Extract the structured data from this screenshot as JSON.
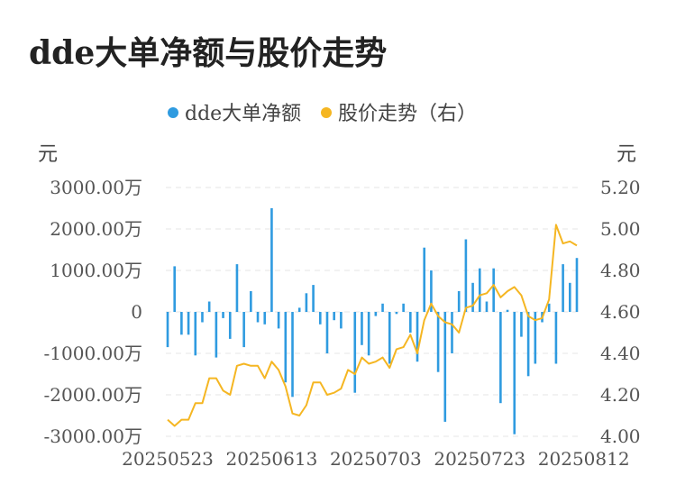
{
  "title": "dde大单净额与股价走势",
  "chart_data": {
    "type": "bar+line",
    "legend": [
      {
        "name": "dde大单净额",
        "color": "#2f9be0"
      },
      {
        "name": "股价走势（右）",
        "color": "#f5b622"
      }
    ],
    "left_unit": "元",
    "right_unit": "元",
    "left_ticks": [
      "3000.00万",
      "2000.00万",
      "1000.00万",
      "0",
      "-1000.00万",
      "-2000.00万",
      "-3000.00万"
    ],
    "right_ticks": [
      "5.20",
      "5.00",
      "4.80",
      "4.60",
      "4.40",
      "4.20",
      "4.00"
    ],
    "ylim_left": [
      -3000,
      3000
    ],
    "ylim_right": [
      4.0,
      5.2
    ],
    "x_tick_labels": [
      "20250523",
      "20250613",
      "20250703",
      "20250723",
      "20250812"
    ],
    "x_tick_index": [
      0,
      15,
      30,
      45,
      60
    ],
    "bar_color": "#2f9be0",
    "line_color": "#f5b622",
    "series": [
      {
        "name": "dde大单净额",
        "values": [
          -850,
          1100,
          -550,
          -550,
          -1050,
          -250,
          250,
          -1100,
          -150,
          -650,
          1150,
          -850,
          500,
          -250,
          -300,
          2500,
          -400,
          -1700,
          -2050,
          100,
          450,
          650,
          -300,
          -1000,
          -200,
          -400,
          0,
          -1950,
          -800,
          -1050,
          -100,
          200,
          -1250,
          -50,
          200,
          -500,
          -1200,
          1550,
          1000,
          -1450,
          -2650,
          -1000,
          500,
          1750,
          700,
          1050,
          250,
          1050,
          -2200,
          50,
          -2950,
          -600,
          -1550,
          -1250,
          -250,
          200,
          -1250,
          1150,
          700,
          1300
        ]
      },
      {
        "name": "股价走势（右）",
        "values": [
          4.08,
          4.05,
          4.08,
          4.08,
          4.16,
          4.16,
          4.28,
          4.28,
          4.22,
          4.2,
          4.34,
          4.35,
          4.34,
          4.34,
          4.28,
          4.36,
          4.32,
          4.24,
          4.11,
          4.1,
          4.15,
          4.26,
          4.26,
          4.2,
          4.21,
          4.23,
          4.32,
          4.3,
          4.38,
          4.35,
          4.36,
          4.38,
          4.33,
          4.42,
          4.43,
          4.49,
          4.4,
          4.56,
          4.64,
          4.58,
          4.55,
          4.54,
          4.5,
          4.62,
          4.63,
          4.68,
          4.69,
          4.73,
          4.67,
          4.7,
          4.72,
          4.68,
          4.58,
          4.56,
          4.57,
          4.66,
          5.02,
          4.93,
          4.94,
          4.92
        ]
      }
    ]
  }
}
